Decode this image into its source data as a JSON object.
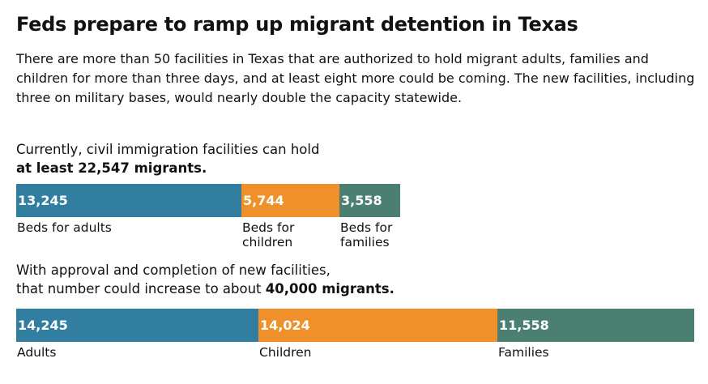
{
  "title": "Feds prepare to ramp up migrant detention in Texas",
  "subtitle": "There are more than 50 facilities in Texas that are authorized to hold migrant adults, families and children for more than three days, and at least eight more could be coming. The new facilities, including three on military bases, would nearly double the capacity statewide.",
  "colors": {
    "adults": "#327EA0",
    "children": "#F0902A",
    "families": "#4A7F72"
  },
  "chart_data": [
    {
      "type": "bar",
      "stacked": true,
      "intro_line1": "Currently, civil immigration facilities can hold",
      "intro_bold": "at least 22,547 migrants.",
      "categories": [
        "Beds for adults",
        "Beds for children",
        "Beds for families"
      ],
      "label_lines": [
        [
          "Beds for adults"
        ],
        [
          "Beds for",
          "children"
        ],
        [
          "Beds for",
          "families"
        ]
      ],
      "values": [
        13245,
        5744,
        3558
      ],
      "value_labels": [
        "13,245",
        "5,744",
        "3,558"
      ]
    },
    {
      "type": "bar",
      "stacked": true,
      "intro_line1": "With approval and completion of new facilities,",
      "intro_line2_prefix": "that number could increase to about ",
      "intro_bold": "40,000 migrants.",
      "categories": [
        "Adults",
        "Children",
        "Families"
      ],
      "label_lines": [
        [
          "Adults"
        ],
        [
          "Children"
        ],
        [
          "Families"
        ]
      ],
      "values": [
        14245,
        14024,
        11558
      ],
      "value_labels": [
        "14,245",
        "14,024",
        "11,558"
      ]
    }
  ]
}
